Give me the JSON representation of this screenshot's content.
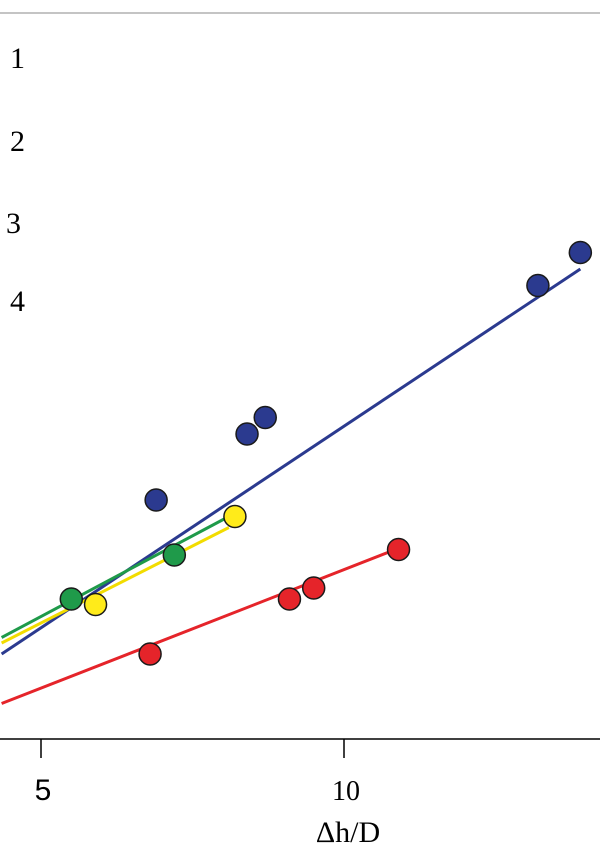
{
  "chart_data": {
    "type": "scatter",
    "xlabel": "Δh/D",
    "ylabel": "",
    "x_ticks": [
      {
        "value": 5,
        "label": "5"
      },
      {
        "value": 10,
        "label": "10"
      }
    ],
    "xlim": [
      4.35,
      13.9
    ],
    "ylim": [
      0,
      1
    ],
    "legend_placement": "top-left",
    "grid": false,
    "series": [
      {
        "name": "1",
        "color": "#2b3a8f",
        "points": [
          {
            "x": 6.9,
            "y": 0.4
          },
          {
            "x": 8.4,
            "y": 0.52
          },
          {
            "x": 8.7,
            "y": 0.55
          },
          {
            "x": 13.2,
            "y": 0.79
          },
          {
            "x": 13.9,
            "y": 0.85
          }
        ],
        "fit": {
          "x": [
            4.35,
            13.9
          ],
          "y": [
            0.12,
            0.82
          ]
        }
      },
      {
        "name": "2",
        "color": "#1f9a4a",
        "points": [
          {
            "x": 5.5,
            "y": 0.22
          },
          {
            "x": 7.2,
            "y": 0.3
          }
        ],
        "fit": {
          "x": [
            4.35,
            8.1
          ],
          "y": [
            0.15,
            0.37
          ]
        }
      },
      {
        "name": "3",
        "color": "#ffeb1a",
        "points": [
          {
            "x": 5.9,
            "y": 0.21
          },
          {
            "x": 8.2,
            "y": 0.37
          }
        ],
        "fit": {
          "x": [
            4.35,
            8.1
          ],
          "y": [
            0.14,
            0.35
          ]
        }
      },
      {
        "name": "4",
        "color": "#e5242a",
        "points": [
          {
            "x": 6.8,
            "y": 0.12
          },
          {
            "x": 9.1,
            "y": 0.22
          },
          {
            "x": 9.5,
            "y": 0.24
          },
          {
            "x": 10.9,
            "y": 0.31
          }
        ],
        "fit": {
          "x": [
            4.35,
            10.85
          ],
          "y": [
            0.03,
            0.31
          ]
        }
      }
    ]
  }
}
